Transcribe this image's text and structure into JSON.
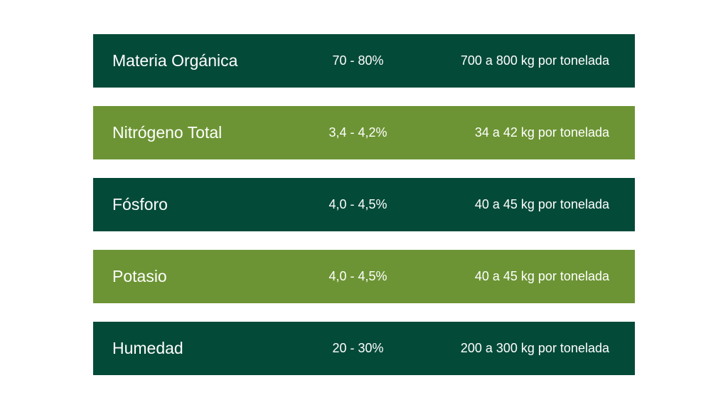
{
  "table": {
    "rows": [
      [
        "Materia Orgánica",
        "70 - 80%",
        "700 a 800 kg por tonelada"
      ],
      [
        "Nitrógeno Total",
        "3,4 - 4,2%",
        "34 a 42 kg por tonelada"
      ],
      [
        "Fósforo",
        "4,0 - 4,5%",
        "40 a 45 kg por tonelada"
      ],
      [
        "Potasio",
        "4,0 - 4,5%",
        "40 a 45 kg por tonelada"
      ],
      [
        "Humedad",
        "20 - 30%",
        "200 a 300 kg por tonelada"
      ]
    ]
  }
}
